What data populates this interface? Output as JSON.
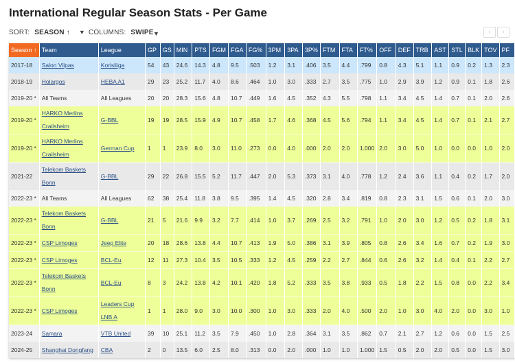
{
  "title": "International Regular Season Stats - Per Game",
  "sort": {
    "label": "SORT:",
    "value": "SEASON ↑",
    "columns_label": "COLUMNS:",
    "columns_value": "SWIPE"
  },
  "nav": {
    "prev": "‹",
    "next": "›"
  },
  "colors": {
    "header": "#2f5b8e",
    "sorted_header": "#f26a21",
    "highlight_row": "#cce6fb",
    "lime_row": "#eeff99"
  },
  "columns": [
    "Season ↑",
    "Team",
    "League",
    "GP",
    "GS",
    "MIN",
    "PTS",
    "FGM",
    "FGA",
    "FG%",
    "3PM",
    "3PA",
    "3P%",
    "FTM",
    "FTA",
    "FT%",
    "OFF",
    "DEF",
    "TRB",
    "AST",
    "STL",
    "BLK",
    "TOV",
    "PF"
  ],
  "rows": [
    {
      "style": "blue",
      "links": true,
      "cells": [
        "2017-18",
        "Salon Vilpas",
        "Korisliiga",
        "54",
        "43",
        "24.6",
        "14.3",
        "4.8",
        "9.5",
        ".503",
        "1.2",
        "3.1",
        ".406",
        "3.5",
        "4.4",
        ".799",
        "0.8",
        "4.3",
        "5.1",
        "1.1",
        "0.9",
        "0.2",
        "1.3",
        "2.3"
      ]
    },
    {
      "style": "gray",
      "links": true,
      "cells": [
        "2018-19",
        "Holargos",
        "HEBA A1",
        "29",
        "23",
        "25.2",
        "11.7",
        "4.0",
        "8.6",
        ".464",
        "1.0",
        "3.0",
        ".333",
        "2.7",
        "3.5",
        ".775",
        "1.0",
        "2.9",
        "3.9",
        "1.2",
        "0.9",
        "0.1",
        "1.8",
        "2.6"
      ]
    },
    {
      "style": "light",
      "links": false,
      "cells": [
        "2019-20 *",
        "All Teams",
        "All Leagues",
        "20",
        "20",
        "28.3",
        "15.6",
        "4.8",
        "10.7",
        ".449",
        "1.6",
        "4.5",
        ".352",
        "4.3",
        "5.5",
        ".798",
        "1.1",
        "3.4",
        "4.5",
        "1.4",
        "0.7",
        "0.1",
        "2.0",
        "2.6"
      ]
    },
    {
      "style": "lime",
      "tall": true,
      "links": true,
      "cells": [
        "2019-20 *",
        "HARKO Merlins Crailsheim",
        "G-BBL",
        "19",
        "19",
        "28.5",
        "15.9",
        "4.9",
        "10.7",
        ".458",
        "1.7",
        "4.6",
        ".368",
        "4.5",
        "5.6",
        ".794",
        "1.1",
        "3.4",
        "4.5",
        "1.4",
        "0.7",
        "0.1",
        "2.1",
        "2.7"
      ]
    },
    {
      "style": "lime",
      "tall": true,
      "links": true,
      "cells": [
        "2019-20 *",
        "HARKO Merlins Crailsheim",
        "German Cup",
        "1",
        "1",
        "23.9",
        "8.0",
        "3.0",
        "11.0",
        ".273",
        "0.0",
        "4.0",
        ".000",
        "2.0",
        "2.0",
        "1.000",
        "2.0",
        "3.0",
        "5.0",
        "1.0",
        "0.0",
        "0.0",
        "1.0",
        "2.0"
      ]
    },
    {
      "style": "gray",
      "tall": true,
      "links": true,
      "cells": [
        "2021-22",
        "Telekom Baskets Bonn",
        "G-BBL",
        "29",
        "22",
        "26.8",
        "15.5",
        "5.2",
        "11.7",
        ".447",
        "2.0",
        "5.3",
        ".373",
        "3.1",
        "4.0",
        ".778",
        "1.2",
        "2.4",
        "3.6",
        "1.1",
        "0.4",
        "0.2",
        "1.7",
        "2.0"
      ]
    },
    {
      "style": "light",
      "links": false,
      "cells": [
        "2022-23 *",
        "All Teams",
        "All Leagues",
        "62",
        "38",
        "25.4",
        "11.8",
        "3.8",
        "9.5",
        ".395",
        "1.4",
        "4.5",
        ".320",
        "2.8",
        "3.4",
        ".819",
        "0.8",
        "2.3",
        "3.1",
        "1.5",
        "0.6",
        "0.1",
        "2.0",
        "3.0"
      ]
    },
    {
      "style": "lime",
      "tall": true,
      "links": true,
      "cells": [
        "2022-23 *",
        "Telekom Baskets Bonn",
        "G-BBL",
        "21",
        "5",
        "21.6",
        "9.9",
        "3.2",
        "7.7",
        ".414",
        "1.0",
        "3.7",
        ".269",
        "2.5",
        "3.2",
        ".791",
        "1.0",
        "2.0",
        "3.0",
        "1.2",
        "0.5",
        "0.2",
        "1.8",
        "3.1"
      ]
    },
    {
      "style": "lime",
      "links": true,
      "cells": [
        "2022-23 *",
        "CSP Limoges",
        "Jeep Elite",
        "20",
        "18",
        "28.6",
        "13.8",
        "4.4",
        "10.7",
        ".413",
        "1.9",
        "5.0",
        ".386",
        "3.1",
        "3.9",
        ".805",
        "0.8",
        "2.6",
        "3.4",
        "1.6",
        "0.7",
        "0.2",
        "1.9",
        "3.0"
      ]
    },
    {
      "style": "lime",
      "links": true,
      "cells": [
        "2022-23 *",
        "CSP Limoges",
        "BCL-Eu",
        "12",
        "11",
        "27.3",
        "10.4",
        "3.5",
        "10.5",
        ".333",
        "1.2",
        "4.5",
        ".259",
        "2.2",
        "2.7",
        ".844",
        "0.6",
        "2.6",
        "3.2",
        "1.4",
        "0.4",
        "0.1",
        "2.2",
        "2.7"
      ]
    },
    {
      "style": "lime",
      "tall": true,
      "links": true,
      "cells": [
        "2022-23 *",
        "Telekom Baskets Bonn",
        "BCL-Eu",
        "8",
        "3",
        "24.2",
        "13.8",
        "4.2",
        "10.1",
        ".420",
        "1.8",
        "5.2",
        ".333",
        "3.5",
        "3.8",
        ".933",
        "0.5",
        "1.8",
        "2.2",
        "1.5",
        "0.8",
        "0.0",
        "2.2",
        "3.4"
      ]
    },
    {
      "style": "lime",
      "tall": true,
      "links": true,
      "cells": [
        "2022-23 *",
        "CSP Limoges",
        "Leaders Cup LNB A",
        "1",
        "1",
        "28.0",
        "9.0",
        "3.0",
        "10.0",
        ".300",
        "1.0",
        "3.0",
        ".333",
        "2.0",
        "4.0",
        ".500",
        "2.0",
        "1.0",
        "3.0",
        "4.0",
        "2.0",
        "0.0",
        "3.0",
        "1.0"
      ]
    },
    {
      "style": "light",
      "links": true,
      "cells": [
        "2023-24",
        "Samara",
        "VTB United",
        "39",
        "10",
        "25.1",
        "11.2",
        "3.5",
        "7.9",
        ".450",
        "1.0",
        "2.8",
        ".364",
        "3.1",
        "3.5",
        ".862",
        "0.7",
        "2.1",
        "2.7",
        "1.2",
        "0.6",
        "0.0",
        "1.5",
        "2.5"
      ]
    },
    {
      "style": "gray",
      "links": true,
      "cells": [
        "2024-25",
        "Shanghai Dongfang",
        "CBA",
        "2",
        "0",
        "13.5",
        "6.0",
        "2.5",
        "8.0",
        ".313",
        "0.0",
        "2.0",
        ".000",
        "1.0",
        "1.0",
        "1.000",
        "1.5",
        "0.5",
        "2.0",
        "2.0",
        "0.5",
        "0.0",
        "1.5",
        "3.0"
      ]
    }
  ]
}
